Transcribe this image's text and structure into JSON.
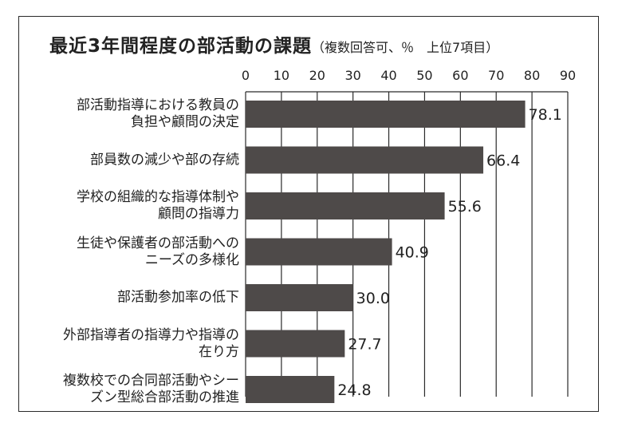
{
  "chart_data": {
    "type": "bar",
    "orientation": "horizontal",
    "title": "最近3年間程度の部活動の課題",
    "subtitle": "（複数回答可、％　上位7項目）",
    "xlim": [
      0,
      90
    ],
    "xticks": [
      0,
      10,
      20,
      30,
      40,
      50,
      60,
      70,
      80,
      90
    ],
    "grid": true,
    "bar_color": "#4e4a49",
    "categories": [
      [
        "部活動指導における教員の",
        "負担や顧問の決定"
      ],
      [
        "部員数の減少や部の存続"
      ],
      [
        "学校の組織的な指導体制や",
        "顧問の指導力"
      ],
      [
        "生徒や保護者の部活動への",
        "ニーズの多様化"
      ],
      [
        "部活動参加率の低下"
      ],
      [
        "外部指導者の指導力や指導の",
        "在り方"
      ],
      [
        "複数校での合同部活動やシー",
        "ズン型総合部活動の推進"
      ]
    ],
    "values": [
      78.1,
      66.4,
      55.6,
      40.9,
      30.0,
      27.7,
      24.8
    ],
    "value_labels": [
      "78.1",
      "66.4",
      "55.6",
      "40.9",
      "30.0",
      "27.7",
      "24.8"
    ]
  }
}
